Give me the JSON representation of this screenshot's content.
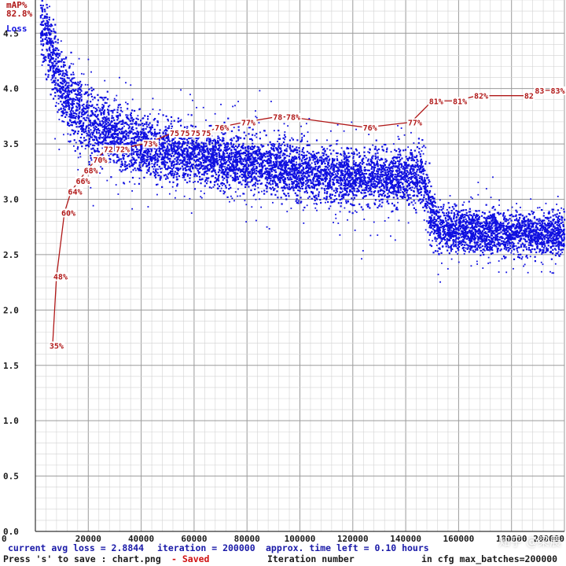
{
  "chart_data": {
    "type": "line",
    "title": "",
    "xlabel": "Iteration number",
    "ylabel": "Loss",
    "xlim": [
      0,
      200000
    ],
    "ylim": [
      0,
      4.8
    ],
    "x_ticks": [
      {
        "value": 0,
        "label": "0"
      },
      {
        "value": 20000,
        "label": "20000"
      },
      {
        "value": 40000,
        "label": "40000"
      },
      {
        "value": 60000,
        "label": "60000"
      },
      {
        "value": 80000,
        "label": "80000"
      },
      {
        "value": 100000,
        "label": "100000"
      },
      {
        "value": 120000,
        "label": "120000"
      },
      {
        "value": 140000,
        "label": "140000"
      },
      {
        "value": 160000,
        "label": "160000"
      },
      {
        "value": 180000,
        "label": "180000"
      },
      {
        "value": 200000,
        "label": "200000"
      }
    ],
    "y_ticks": [
      {
        "value": 0.0,
        "label": "0.0"
      },
      {
        "value": 0.5,
        "label": "0.5"
      },
      {
        "value": 1.0,
        "label": "1.0"
      },
      {
        "value": 1.5,
        "label": "1.5"
      },
      {
        "value": 2.0,
        "label": "2.0"
      },
      {
        "value": 2.5,
        "label": "2.5"
      },
      {
        "value": 3.0,
        "label": "3.0"
      },
      {
        "value": 3.5,
        "label": "3.5"
      },
      {
        "value": 4.0,
        "label": "4.0"
      },
      {
        "value": 4.5,
        "label": "4.5"
      }
    ],
    "legend": [
      {
        "name": "mAP%",
        "value": "82.8%",
        "color": "#b01818"
      },
      {
        "name": "Loss",
        "color": "#1010e0"
      }
    ],
    "loss_series": {
      "name": "Loss",
      "color": "#1010e0",
      "x": [
        0,
        3000,
        6000,
        10000,
        14000,
        20000,
        30000,
        40000,
        60000,
        80000,
        100000,
        120000,
        140000,
        147000,
        149000,
        152000,
        160000,
        180000,
        200000
      ],
      "mean": [
        4.8,
        4.6,
        4.3,
        4.0,
        3.85,
        3.7,
        3.55,
        3.48,
        3.4,
        3.35,
        3.25,
        3.2,
        3.2,
        3.2,
        2.9,
        2.75,
        2.72,
        2.7,
        2.68
      ],
      "spread": [
        0.4,
        0.5,
        0.45,
        0.45,
        0.45,
        0.45,
        0.4,
        0.38,
        0.35,
        0.35,
        0.35,
        0.35,
        0.35,
        0.35,
        0.4,
        0.3,
        0.28,
        0.28,
        0.28
      ]
    },
    "map_series": {
      "name": "mAP%",
      "color": "#b01818",
      "points": [
        {
          "x": 6500,
          "map": 35,
          "label": "35%"
        },
        {
          "x": 8000,
          "map": 48,
          "label": "48%"
        },
        {
          "x": 11000,
          "map": 60,
          "label": "60%"
        },
        {
          "x": 13500,
          "map": 64,
          "label": "64%"
        },
        {
          "x": 16500,
          "map": 66,
          "label": "66%"
        },
        {
          "x": 19500,
          "map": 68,
          "label": "68%"
        },
        {
          "x": 23000,
          "map": 70,
          "label": "70%"
        },
        {
          "x": 27000,
          "map": 72,
          "label": "72"
        },
        {
          "x": 31500,
          "map": 72,
          "label": "72%"
        },
        {
          "x": 42000,
          "map": 73,
          "label": "73%"
        },
        {
          "x": 52000,
          "map": 75,
          "label": "75"
        },
        {
          "x": 56000,
          "map": 75,
          "label": "75"
        },
        {
          "x": 60000,
          "map": 75,
          "label": "75"
        },
        {
          "x": 64000,
          "map": 75,
          "label": "75"
        },
        {
          "x": 69000,
          "map": 76,
          "label": "76%"
        },
        {
          "x": 79000,
          "map": 77,
          "label": "77%"
        },
        {
          "x": 91000,
          "map": 78,
          "label": "78"
        },
        {
          "x": 96000,
          "map": 78,
          "label": "78%"
        },
        {
          "x": 125000,
          "map": 76,
          "label": "76%"
        },
        {
          "x": 142000,
          "map": 77,
          "label": "77%"
        },
        {
          "x": 150000,
          "map": 81,
          "label": "81%"
        },
        {
          "x": 159000,
          "map": 81,
          "label": "81%"
        },
        {
          "x": 167000,
          "map": 82,
          "label": "82%"
        },
        {
          "x": 186000,
          "map": 82,
          "label": "82"
        },
        {
          "x": 190000,
          "map": 83,
          "label": "83"
        },
        {
          "x": 196000,
          "map": 83,
          "label": "83%"
        }
      ]
    }
  },
  "status": {
    "current_avg_loss": "current avg loss = 2.8844",
    "iteration": "iteration = 200000",
    "time_left": "approx. time left = 0.10 hours",
    "press_save": "Press 's' to save : chart.png",
    "saved": "- Saved",
    "x_axis_title": "Iteration number",
    "max_batches": "in cfg max_batches=200000"
  },
  "watermark": "知乎 @梁晨"
}
